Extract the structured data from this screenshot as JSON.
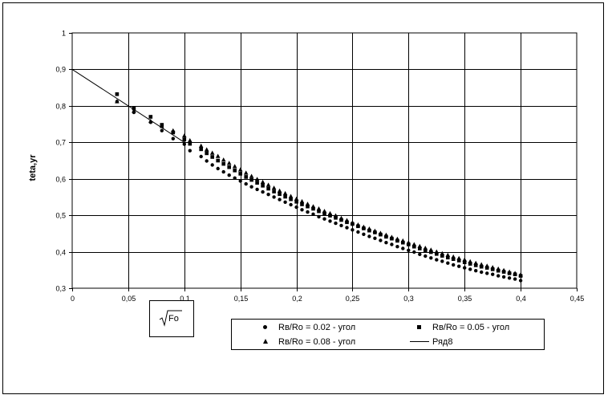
{
  "chart_data": {
    "type": "scatter",
    "ylabel": "teta,yr",
    "xlabel_expr": "Fo",
    "xlim": [
      0,
      0.45
    ],
    "ylim": [
      0.3,
      1
    ],
    "x_ticks": [
      "0",
      "0,05",
      "0,1",
      "0,15",
      "0,2",
      "0,25",
      "0,3",
      "0,35",
      "0,4",
      "0,45"
    ],
    "y_ticks": [
      "0,3",
      "0,4",
      "0,5",
      "0,6",
      "0,7",
      "0,8",
      "0,9",
      "1"
    ],
    "grid": true,
    "legend_position": "bottom-right",
    "series": [
      {
        "name": "Rв/Ro = 0.02 - угол",
        "marker": "circle",
        "x": [
          0.04,
          0.055,
          0.07,
          0.08,
          0.09,
          0.1,
          0.105,
          0.115,
          0.12,
          0.125,
          0.13,
          0.135,
          0.14,
          0.145,
          0.15,
          0.155,
          0.16,
          0.165,
          0.17,
          0.175,
          0.18,
          0.185,
          0.19,
          0.195,
          0.2,
          0.205,
          0.21,
          0.215,
          0.22,
          0.225,
          0.23,
          0.235,
          0.24,
          0.245,
          0.25,
          0.255,
          0.26,
          0.265,
          0.27,
          0.275,
          0.28,
          0.285,
          0.29,
          0.295,
          0.3,
          0.305,
          0.31,
          0.315,
          0.32,
          0.325,
          0.33,
          0.335,
          0.34,
          0.345,
          0.35,
          0.355,
          0.36,
          0.365,
          0.37,
          0.375,
          0.38,
          0.385,
          0.39,
          0.395,
          0.4
        ],
        "y": [
          0.812,
          0.782,
          0.755,
          0.732,
          0.71,
          0.695,
          0.677,
          0.661,
          0.649,
          0.638,
          0.628,
          0.619,
          0.61,
          0.602,
          0.594,
          0.586,
          0.578,
          0.571,
          0.564,
          0.557,
          0.55,
          0.543,
          0.536,
          0.529,
          0.522,
          0.515,
          0.509,
          0.503,
          0.496,
          0.49,
          0.484,
          0.478,
          0.472,
          0.466,
          0.46,
          0.454,
          0.448,
          0.442,
          0.437,
          0.431,
          0.425,
          0.42,
          0.414,
          0.409,
          0.404,
          0.399,
          0.393,
          0.388,
          0.383,
          0.378,
          0.374,
          0.369,
          0.364,
          0.36,
          0.356,
          0.352,
          0.348,
          0.344,
          0.341,
          0.338,
          0.334,
          0.331,
          0.328,
          0.325,
          0.321
        ]
      },
      {
        "name": "Rв/Ro = 0.05 - угол",
        "marker": "square",
        "x": [
          0.04,
          0.055,
          0.07,
          0.08,
          0.09,
          0.1,
          0.105,
          0.115,
          0.12,
          0.125,
          0.13,
          0.135,
          0.14,
          0.145,
          0.15,
          0.155,
          0.16,
          0.165,
          0.17,
          0.175,
          0.18,
          0.185,
          0.19,
          0.195,
          0.2,
          0.205,
          0.21,
          0.215,
          0.22,
          0.225,
          0.23,
          0.235,
          0.24,
          0.245,
          0.25,
          0.255,
          0.26,
          0.265,
          0.27,
          0.275,
          0.28,
          0.285,
          0.29,
          0.295,
          0.3,
          0.305,
          0.31,
          0.315,
          0.32,
          0.325,
          0.33,
          0.335,
          0.34,
          0.345,
          0.35,
          0.355,
          0.36,
          0.365,
          0.37,
          0.375,
          0.38,
          0.385,
          0.39,
          0.395,
          0.4
        ],
        "y": [
          0.832,
          0.793,
          0.77,
          0.748,
          0.727,
          0.708,
          0.696,
          0.681,
          0.67,
          0.66,
          0.65,
          0.641,
          0.632,
          0.623,
          0.614,
          0.605,
          0.597,
          0.589,
          0.581,
          0.573,
          0.565,
          0.558,
          0.551,
          0.544,
          0.537,
          0.53,
          0.524,
          0.518,
          0.511,
          0.505,
          0.499,
          0.493,
          0.487,
          0.481,
          0.476,
          0.47,
          0.464,
          0.458,
          0.453,
          0.447,
          0.441,
          0.436,
          0.43,
          0.425,
          0.42,
          0.414,
          0.409,
          0.404,
          0.399,
          0.394,
          0.389,
          0.384,
          0.38,
          0.376,
          0.371,
          0.367,
          0.363,
          0.359,
          0.356,
          0.352,
          0.348,
          0.345,
          0.341,
          0.338,
          0.334
        ]
      },
      {
        "name": "Rв/Ro = 0.08 - угол",
        "marker": "triangle",
        "x": [
          0.04,
          0.055,
          0.07,
          0.08,
          0.09,
          0.1,
          0.105,
          0.115,
          0.12,
          0.125,
          0.13,
          0.135,
          0.14,
          0.145,
          0.15,
          0.155,
          0.16,
          0.165,
          0.17,
          0.175,
          0.18,
          0.185,
          0.19,
          0.195,
          0.2,
          0.205,
          0.21,
          0.215,
          0.22,
          0.225,
          0.23,
          0.235,
          0.24,
          0.245,
          0.25,
          0.255,
          0.26,
          0.265,
          0.27,
          0.275,
          0.28,
          0.285,
          0.29,
          0.295,
          0.3,
          0.305,
          0.31,
          0.315,
          0.32,
          0.325,
          0.33,
          0.335,
          0.34,
          0.345,
          0.35,
          0.355,
          0.36,
          0.365,
          0.37,
          0.375,
          0.38,
          0.385,
          0.39,
          0.395,
          0.4
        ],
        "y": [
          0.812,
          0.786,
          0.758,
          0.744,
          0.732,
          0.718,
          0.705,
          0.69,
          0.68,
          0.671,
          0.662,
          0.652,
          0.643,
          0.634,
          0.625,
          0.616,
          0.607,
          0.599,
          0.591,
          0.583,
          0.575,
          0.567,
          0.56,
          0.552,
          0.545,
          0.538,
          0.531,
          0.524,
          0.518,
          0.511,
          0.505,
          0.499,
          0.492,
          0.486,
          0.48,
          0.474,
          0.468,
          0.463,
          0.457,
          0.451,
          0.446,
          0.44,
          0.435,
          0.43,
          0.425,
          0.42,
          0.415,
          0.41,
          0.405,
          0.4,
          0.395,
          0.391,
          0.386,
          0.382,
          0.378,
          0.373,
          0.369,
          0.365,
          0.361,
          0.357,
          0.353,
          0.349,
          0.345,
          0.341,
          0.337
        ]
      },
      {
        "name": "Ряд8",
        "marker": "line",
        "x": [
          0,
          0.1
        ],
        "y": [
          0.9,
          0.7
        ]
      }
    ]
  }
}
